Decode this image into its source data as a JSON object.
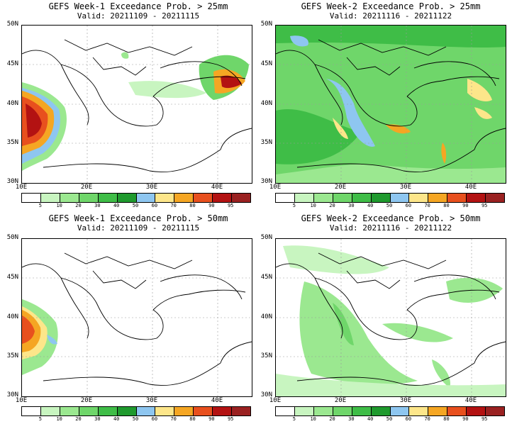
{
  "panels": [
    {
      "id": "w1-25",
      "title": "GEFS Week-1 Exceedance Prob. > 25mm",
      "valid": "Valid: 20211109 - 20211115"
    },
    {
      "id": "w2-25",
      "title": "GEFS Week-2 Exceedance Prob. > 25mm",
      "valid": "Valid: 20211116 - 20211122"
    },
    {
      "id": "w1-50",
      "title": "GEFS Week-1 Exceedance Prob. > 50mm",
      "valid": "Valid: 20211109 - 20211115"
    },
    {
      "id": "w2-50",
      "title": "GEFS Week-2 Exceedance Prob. > 50mm",
      "valid": "Valid: 20211116 - 20211122"
    }
  ],
  "lat_labels": [
    "50N",
    "45N",
    "40N",
    "35N",
    "30N"
  ],
  "lon_labels": [
    "10E",
    "20E",
    "30E",
    "40E"
  ],
  "colorbar": {
    "labels": [
      "5",
      "10",
      "20",
      "30",
      "40",
      "50",
      "60",
      "70",
      "80",
      "90",
      "95"
    ],
    "colors": [
      "#ffffff",
      "#c8f5c0",
      "#9be890",
      "#6fd66a",
      "#3fbd47",
      "#1f9a2e",
      "#8ec6f0",
      "#fde68a",
      "#f5a623",
      "#e8501e",
      "#b31212",
      "#9a2121"
    ]
  }
}
